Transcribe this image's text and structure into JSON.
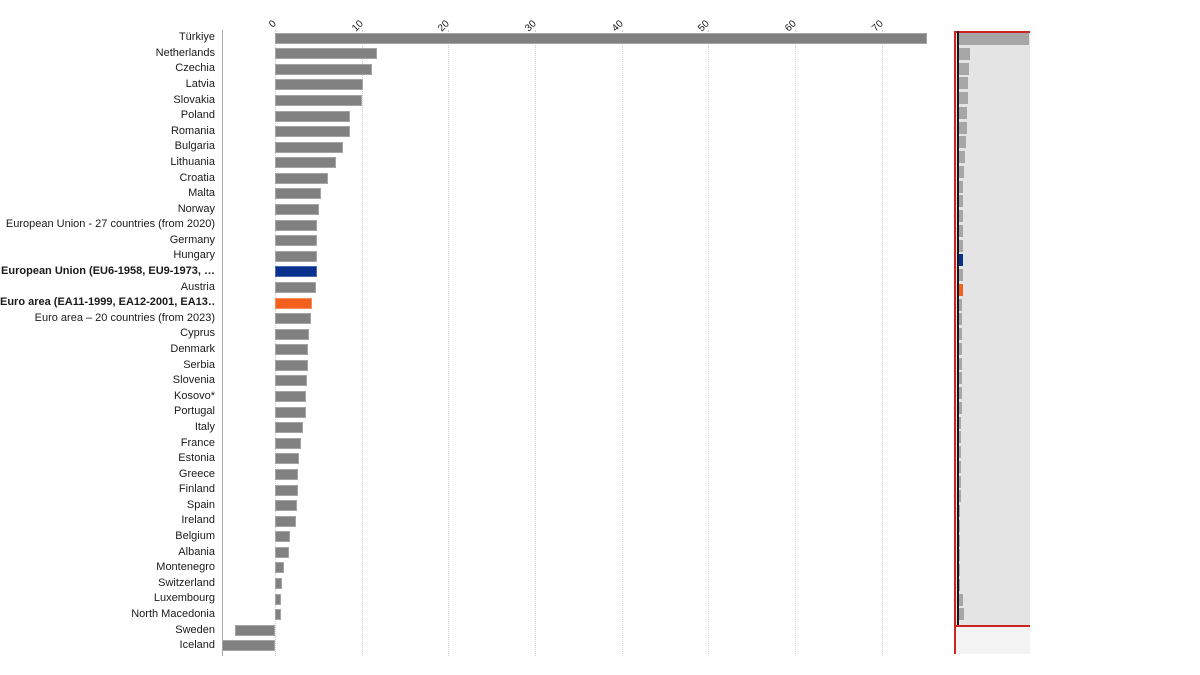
{
  "chart_data": {
    "type": "bar",
    "orientation": "horizontal",
    "title": "",
    "subtitle": "",
    "xlabel": "",
    "ylabel": "",
    "legend": "none",
    "grid": "vertical-dotted",
    "xlim": [
      -8,
      77
    ],
    "x_ticks": [
      "0",
      "10",
      "20",
      "30",
      "40",
      "50",
      "60",
      "70"
    ],
    "x_tick_values": [
      0,
      10,
      20,
      30,
      40,
      50,
      60,
      70
    ],
    "categories": [
      "Türkiye",
      "Netherlands",
      "Czechia",
      "Latvia",
      "Slovakia",
      "Poland",
      "Romania",
      "Bulgaria",
      "Lithuania",
      "Croatia",
      "Malta",
      "Norway",
      "European Union - 27 countries (from 2020)",
      "Germany",
      "Hungary",
      "European Union (EU6-1958, EU9-1973, …",
      "Austria",
      "Euro area (EA11-1999, EA12-2001, EA13…",
      "Euro area – 20 countries (from 2023)",
      "Cyprus",
      "Denmark",
      "Serbia",
      "Slovenia",
      "Kosovo*",
      "Portugal",
      "Italy",
      "France",
      "Estonia",
      "Greece",
      "Finland",
      "Spain",
      "Ireland",
      "Belgium",
      "Albania",
      "Montenegro",
      "Switzerland",
      "Luxembourg",
      "North Macedonia",
      "Sweden",
      "Iceland"
    ],
    "values": [
      75.2,
      11.8,
      11.2,
      10.2,
      10.0,
      8.7,
      8.6,
      7.9,
      7.0,
      6.1,
      5.3,
      5.1,
      4.9,
      4.9,
      4.9,
      4.8,
      4.7,
      4.3,
      4.2,
      3.9,
      3.8,
      3.8,
      3.7,
      3.6,
      3.6,
      3.2,
      3.0,
      2.8,
      2.7,
      2.6,
      2.5,
      2.4,
      1.7,
      1.6,
      1.0,
      0.8,
      0.7,
      0.7,
      -4.6,
      -6.1
    ],
    "bar_color": "#818181",
    "emphasis": [
      {
        "index": 15,
        "color": "#0b318f",
        "bold": true
      },
      {
        "index": 17,
        "color": "#f4601e",
        "bold": true
      }
    ]
  },
  "navigator": {
    "bg_color": "#e4e4e4",
    "outside_bg_color": "#f3f3f3",
    "frame_color": "#cc2420",
    "axis_color": "#161616",
    "mini_bar_color": "#a6a6a6"
  }
}
